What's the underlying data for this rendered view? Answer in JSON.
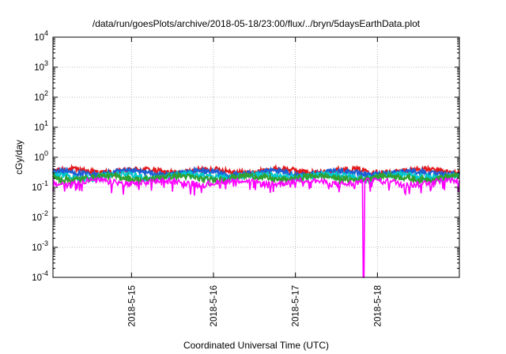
{
  "chart_data": {
    "type": "line",
    "title": "/data/run/goesPlots/archive/2018-05-18/23:00/flux/../bryn/5daysEarthData.plot",
    "xlabel": "Coordinated Universal Time (UTC)",
    "ylabel": "cGy/day",
    "y_scale": "log",
    "ylim": [
      0.0001,
      10000
    ],
    "y_tick_labels": [
      {
        "base": "10",
        "exp": "-4",
        "value": 0.0001
      },
      {
        "base": "10",
        "exp": "-3",
        "value": 0.001
      },
      {
        "base": "10",
        "exp": "-2",
        "value": 0.01
      },
      {
        "base": "10",
        "exp": "-1",
        "value": 0.1
      },
      {
        "base": "10",
        "exp": "0",
        "value": 1
      },
      {
        "base": "10",
        "exp": "1",
        "value": 10
      },
      {
        "base": "10",
        "exp": "2",
        "value": 100
      },
      {
        "base": "10",
        "exp": "3",
        "value": 1000
      },
      {
        "base": "10",
        "exp": "4",
        "value": 10000
      }
    ],
    "xlim": [
      "2018-05-14 01:00",
      "2018-05-19 00:00"
    ],
    "x_ticks": [
      {
        "label": "2018-5-15",
        "value": "2018-05-15 00:00"
      },
      {
        "label": "2018-5-16",
        "value": "2018-05-16 00:00"
      },
      {
        "label": "2018-5-17",
        "value": "2018-05-17 00:00"
      },
      {
        "label": "2018-5-18",
        "value": "2018-05-18 00:00"
      }
    ],
    "grid": true,
    "series": [
      {
        "color": "#e41a1c",
        "approx_level": 0.35
      },
      {
        "color": "#1e5ed6",
        "approx_level": 0.3
      },
      {
        "color": "#00c8d0",
        "approx_level": 0.24
      },
      {
        "color": "#30a030",
        "approx_level": 0.21
      },
      {
        "color": "#ff00ff",
        "approx_level": 0.15,
        "dropouts": [
          {
            "start": "2018-05-17 19:40",
            "end": "2018-05-17 20:10",
            "min": 0.0001
          }
        ]
      }
    ]
  }
}
